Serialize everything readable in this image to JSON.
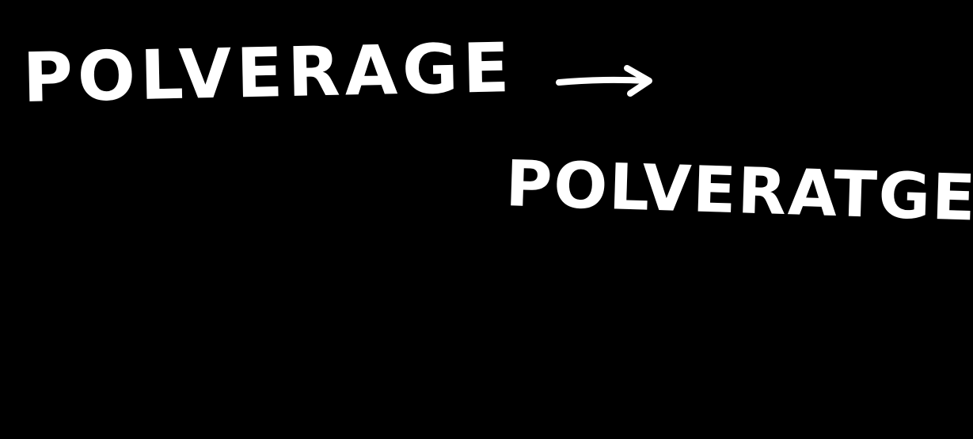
{
  "handwriting": {
    "line_1": "POLVERAGE",
    "line_2": "POLVERATGE",
    "arrow_icon": "right-arrow-icon"
  },
  "colors": {
    "background": "#000000",
    "ink": "#ffffff"
  }
}
